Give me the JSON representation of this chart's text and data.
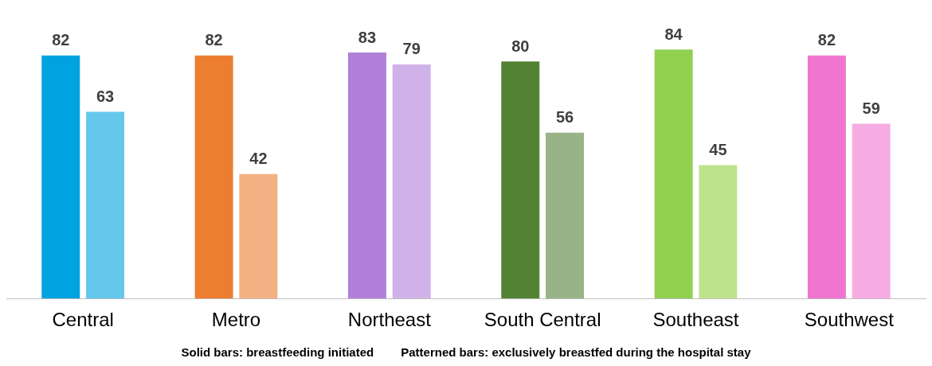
{
  "chart_data": {
    "type": "bar",
    "categories": [
      "Central",
      "Metro",
      "Northeast",
      "South Central",
      "Southeast",
      "Southwest"
    ],
    "series": [
      {
        "colors": [
          "#00a2e0",
          "#ed7d31",
          "#b07fd8",
          "#548235",
          "#92d050",
          "#f075d0"
        ],
        "values": [
          82,
          82,
          83,
          80,
          84,
          82
        ]
      },
      {
        "colors": [
          "#66c7ec",
          "#f4b183",
          "#d0b2e8",
          "#98b486",
          "#bee38f",
          "#f6acE3"
        ],
        "values": [
          63,
          42,
          79,
          56,
          45,
          59
        ]
      }
    ],
    "tick_labels": "x",
    "grid": false,
    "legend": false,
    "data_labels": true,
    "annotations": [
      "Solid bars: breastfeeding initiated",
      "Patterned bars: exclusively breastfed during the hospital stay"
    ]
  }
}
